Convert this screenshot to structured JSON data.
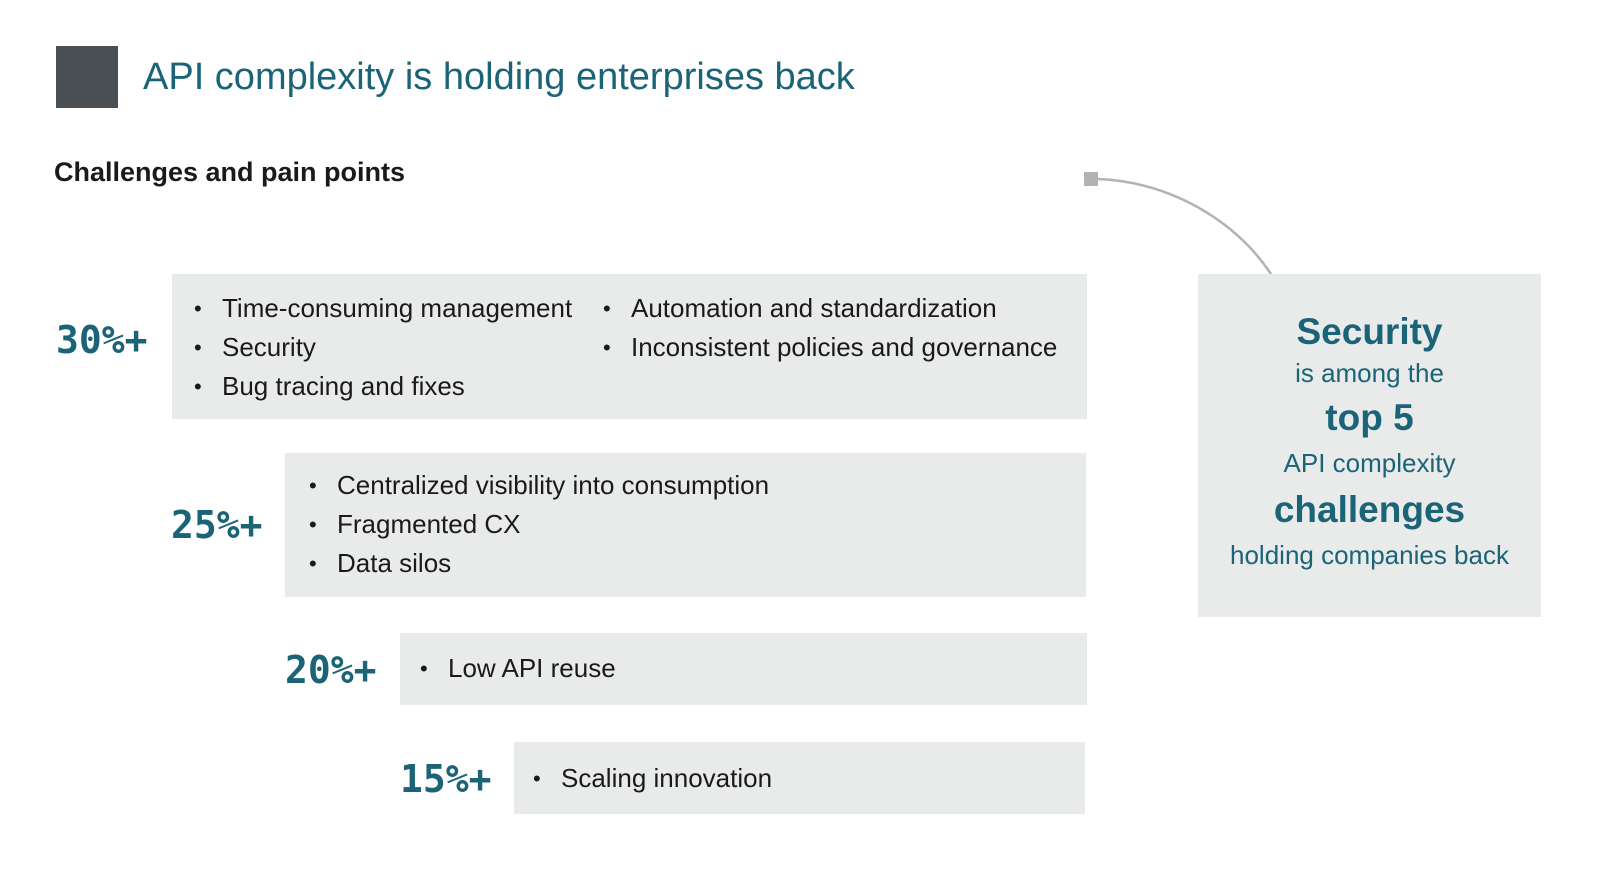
{
  "header": {
    "title": "API complexity is holding enterprises back",
    "subtitle": "Challenges and pain points"
  },
  "chart_data": {
    "type": "table",
    "tiers": [
      {
        "label": "30%+",
        "value": 30,
        "columns": [
          [
            "Time-consuming management",
            "Security",
            "Bug tracing and fixes"
          ],
          [
            "Automation and standardization",
            "Inconsistent policies and governance"
          ]
        ]
      },
      {
        "label": "25%+",
        "value": 25,
        "columns": [
          [
            "Centralized visibility into consumption",
            "Fragmented CX",
            "Data silos"
          ]
        ]
      },
      {
        "label": "20%+",
        "value": 20,
        "columns": [
          [
            "Low API reuse"
          ]
        ]
      },
      {
        "label": "15%+",
        "value": 15,
        "columns": [
          [
            "Scaling innovation"
          ]
        ]
      }
    ]
  },
  "callout": {
    "line1": "Security",
    "line2": "is among the",
    "line3": "top 5",
    "line4": "API complexity",
    "line5": "challenges",
    "line6": "holding companies back"
  },
  "colors": {
    "accent": "#1b6478",
    "box": "#e9eaea",
    "title_square": "#4a4f54",
    "connector": "#b3b3b3"
  },
  "bullet_glyph": "•"
}
